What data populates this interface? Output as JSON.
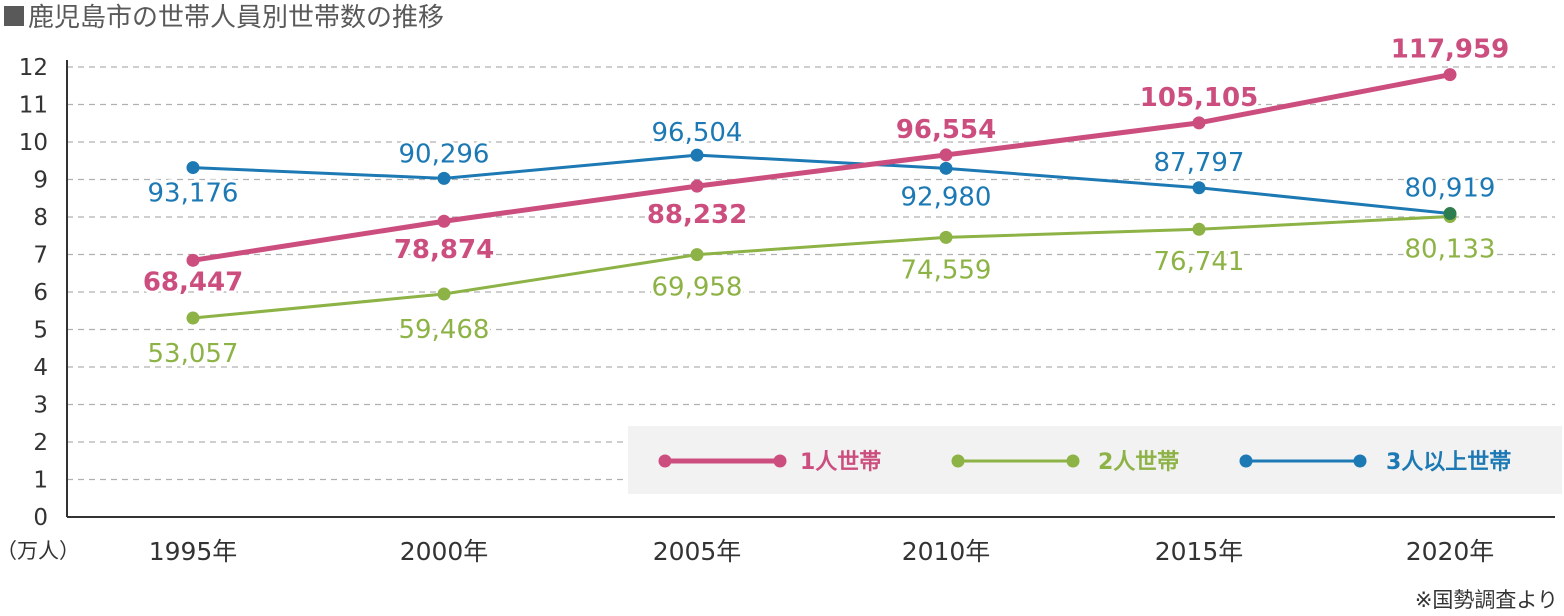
{
  "chart_data": {
    "type": "line",
    "title": "鹿児島市の世帯人員別世帯数の推移",
    "ylabel_unit": "（万人）",
    "categories": [
      "1995年",
      "2000年",
      "2005年",
      "2010年",
      "2015年",
      "2020年"
    ],
    "y_ticks": [
      "0",
      "1",
      "2",
      "3",
      "4",
      "5",
      "6",
      "7",
      "8",
      "9",
      "10",
      "11",
      "12"
    ],
    "ylim": [
      0,
      12
    ],
    "grid": true,
    "legend_position": "bottom-right",
    "series": [
      {
        "name": "1人世帯",
        "color": "#cc4e7f",
        "label_weight": "bold",
        "values": [
          68447,
          78874,
          88232,
          96554,
          105105,
          117959
        ],
        "labels": [
          "68,447",
          "78,874",
          "88,232",
          "96,554",
          "105,105",
          "117,959"
        ]
      },
      {
        "name": "2人世帯",
        "color": "#8db245",
        "label_weight": "normal",
        "values": [
          53057,
          59468,
          69958,
          74559,
          76741,
          80133
        ],
        "labels": [
          "53,057",
          "59,468",
          "69,958",
          "74,559",
          "76,741",
          "80,133"
        ]
      },
      {
        "name": "3人以上世帯",
        "color": "#1d79b4",
        "label_weight": "normal",
        "values": [
          93176,
          90296,
          96504,
          92980,
          87797,
          80919
        ],
        "labels": [
          "93,176",
          "90,296",
          "96,504",
          "92,980",
          "87,797",
          "80,919"
        ]
      }
    ],
    "overlap_marker_color": "#2e7d4f",
    "note": "※国勢調査より"
  }
}
